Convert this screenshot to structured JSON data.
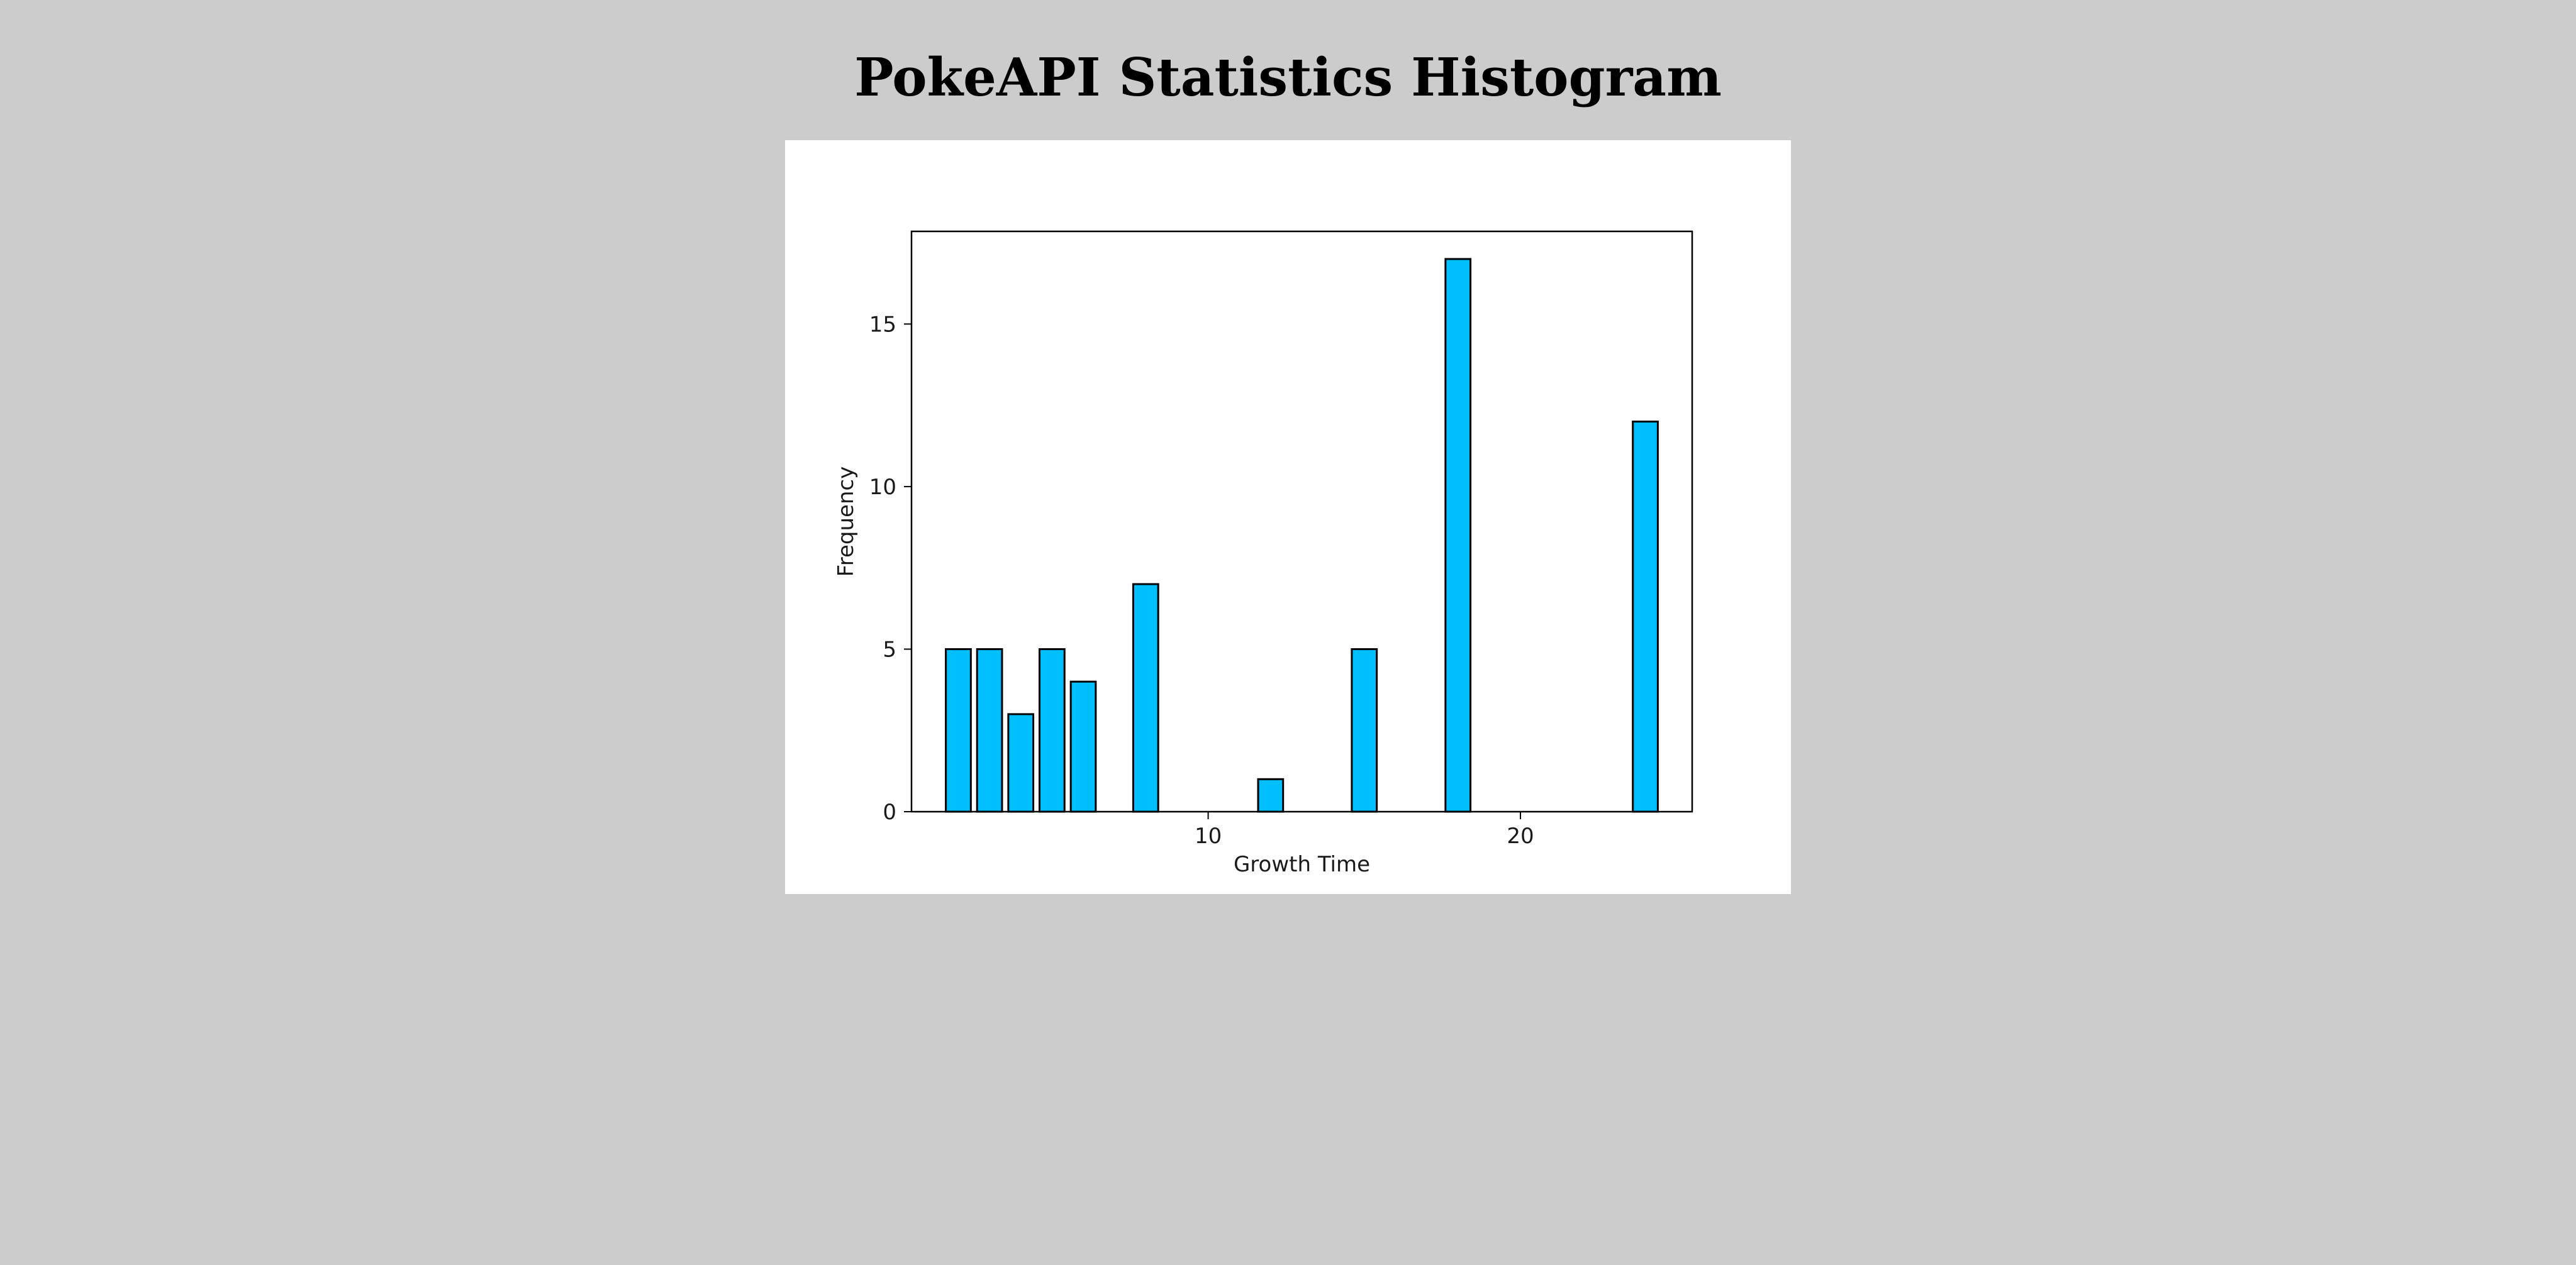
{
  "page": {
    "title": "PokeAPI Statistics Histogram"
  },
  "colors": {
    "background": "#cccccc",
    "card": "#ffffff",
    "bar_fill": "#00bfff",
    "bar_edge": "#000000"
  },
  "chart_data": {
    "type": "bar",
    "title": "",
    "xlabel": "Growth Time",
    "ylabel": "Frequency",
    "categories": [
      2,
      3,
      4,
      5,
      6,
      8,
      12,
      15,
      18,
      24
    ],
    "values": [
      5,
      5,
      3,
      5,
      4,
      7,
      1,
      5,
      17,
      12
    ],
    "bar_width": 0.8,
    "xlim": [
      0.5,
      25.5
    ],
    "ylim": [
      0,
      17.85
    ],
    "xticks": [
      10,
      20
    ],
    "yticks": [
      0,
      5,
      10,
      15
    ],
    "grid": false,
    "legend": "none"
  }
}
